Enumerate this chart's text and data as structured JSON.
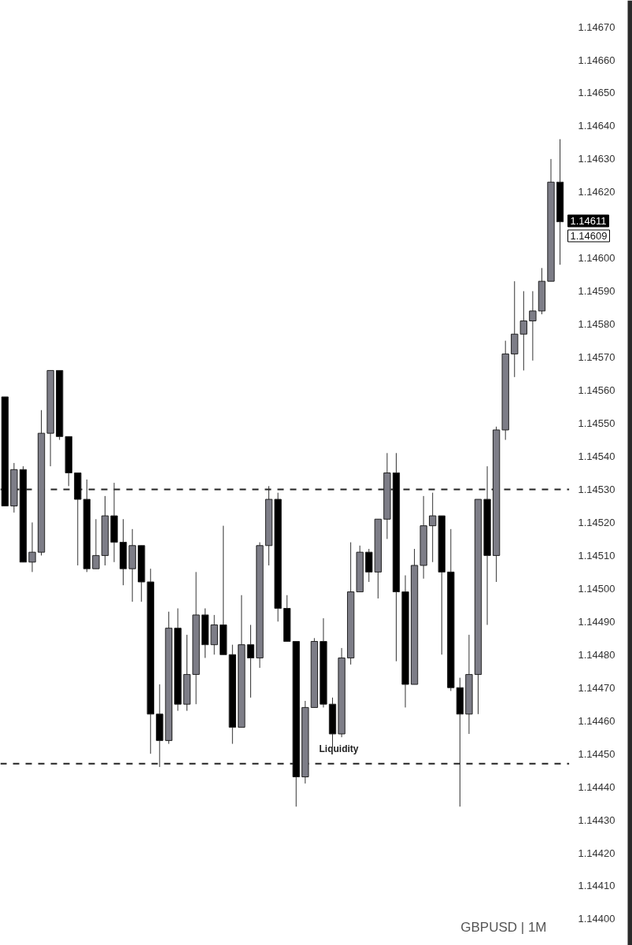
{
  "chart_data": {
    "type": "candlestick",
    "categories": [
      null,
      null,
      null,
      null,
      null,
      null,
      null,
      null,
      null,
      null,
      null,
      null,
      null,
      null,
      null,
      null,
      null,
      null,
      null,
      null,
      null,
      null,
      null,
      null,
      null,
      null,
      null,
      null,
      null,
      null,
      null,
      null,
      null,
      null,
      null,
      null,
      null,
      null,
      null,
      null,
      null,
      null,
      null,
      null,
      null,
      null,
      null,
      null,
      null,
      null,
      null,
      null,
      null,
      null,
      null,
      null,
      null,
      null,
      null,
      null,
      null,
      null
    ],
    "ohlc": [
      [
        1.14558,
        1.14558,
        1.14525,
        1.14525
      ],
      [
        1.14525,
        1.14538,
        1.14523,
        1.14536
      ],
      [
        1.14536,
        1.14537,
        1.14508,
        1.14508
      ],
      [
        1.14508,
        1.1452,
        1.14505,
        1.14511
      ],
      [
        1.14511,
        1.14554,
        1.1451,
        1.14547
      ],
      [
        1.14547,
        1.14566,
        1.14537,
        1.14566
      ],
      [
        1.14566,
        1.14566,
        1.14545,
        1.14546
      ],
      [
        1.14546,
        1.14546,
        1.14531,
        1.14535
      ],
      [
        1.14535,
        1.14535,
        1.14507,
        1.14527
      ],
      [
        1.14527,
        1.14533,
        1.14505,
        1.14506
      ],
      [
        1.14506,
        1.14521,
        1.14506,
        1.1451
      ],
      [
        1.1451,
        1.14528,
        1.14507,
        1.14522
      ],
      [
        1.14522,
        1.14532,
        1.14508,
        1.14514
      ],
      [
        1.14514,
        1.14521,
        1.14501,
        1.14506
      ],
      [
        1.14506,
        1.14518,
        1.14496,
        1.14513
      ],
      [
        1.14513,
        1.14513,
        1.14496,
        1.14502
      ],
      [
        1.14502,
        1.14506,
        1.1445,
        1.14462
      ],
      [
        1.14462,
        1.14471,
        1.14446,
        1.14454
      ],
      [
        1.14454,
        1.14493,
        1.14453,
        1.14488
      ],
      [
        1.14488,
        1.14494,
        1.14463,
        1.14465
      ],
      [
        1.14465,
        1.14486,
        1.14463,
        1.14474
      ],
      [
        1.14474,
        1.14505,
        1.14465,
        1.14492
      ],
      [
        1.14492,
        1.14494,
        1.14479,
        1.14483
      ],
      [
        1.14483,
        1.14492,
        1.1448,
        1.14489
      ],
      [
        1.14489,
        1.14519,
        1.1448,
        1.1448
      ],
      [
        1.1448,
        1.14483,
        1.14453,
        1.14458
      ],
      [
        1.14458,
        1.14498,
        1.14458,
        1.14483
      ],
      [
        1.14483,
        1.14489,
        1.14467,
        1.14479
      ],
      [
        1.14479,
        1.14514,
        1.14476,
        1.14513
      ],
      [
        1.14513,
        1.14531,
        1.14507,
        1.14527
      ],
      [
        1.14527,
        1.14529,
        1.1449,
        1.14494
      ],
      [
        1.14494,
        1.14498,
        1.14484,
        1.14484
      ],
      [
        1.14484,
        1.14484,
        1.14434,
        1.14443
      ],
      [
        1.14443,
        1.14466,
        1.14441,
        1.14464
      ],
      [
        1.14464,
        1.14485,
        1.14464,
        1.14484
      ],
      [
        1.14484,
        1.14491,
        1.14464,
        1.14465
      ],
      [
        1.14465,
        1.14467,
        1.14452,
        1.14456
      ],
      [
        1.14456,
        1.14482,
        1.14455,
        1.14479
      ],
      [
        1.14479,
        1.14514,
        1.14477,
        1.14499
      ],
      [
        1.14499,
        1.14513,
        1.14499,
        1.14511
      ],
      [
        1.14511,
        1.14512,
        1.14502,
        1.14505
      ],
      [
        1.14505,
        1.14521,
        1.14497,
        1.14521
      ],
      [
        1.14521,
        1.14541,
        1.14515,
        1.14535
      ],
      [
        1.14535,
        1.14541,
        1.14478,
        1.14499
      ],
      [
        1.14499,
        1.14504,
        1.14464,
        1.14471
      ],
      [
        1.14471,
        1.14512,
        1.14471,
        1.14507
      ],
      [
        1.14507,
        1.14528,
        1.14503,
        1.14519
      ],
      [
        1.14519,
        1.14529,
        1.14508,
        1.14522
      ],
      [
        1.14522,
        1.14522,
        1.1448,
        1.14505
      ],
      [
        1.14505,
        1.14518,
        1.14469,
        1.1447
      ],
      [
        1.1447,
        1.14473,
        1.14434,
        1.14462
      ],
      [
        1.14462,
        1.14486,
        1.14456,
        1.14474
      ],
      [
        1.14474,
        1.14527,
        1.14462,
        1.14527
      ],
      [
        1.14527,
        1.14537,
        1.14489,
        1.1451
      ],
      [
        1.1451,
        1.14549,
        1.14502,
        1.14548
      ],
      [
        1.14548,
        1.14575,
        1.14545,
        1.14571
      ],
      [
        1.14571,
        1.14593,
        1.14564,
        1.14577
      ],
      [
        1.14577,
        1.1459,
        1.14566,
        1.14581
      ],
      [
        1.14581,
        1.1459,
        1.14569,
        1.14584
      ],
      [
        1.14584,
        1.14597,
        1.14583,
        1.14593
      ],
      [
        1.14593,
        1.1463,
        1.14593,
        1.14623
      ],
      [
        1.14623,
        1.14636,
        1.14598,
        1.14611
      ]
    ],
    "colors": [
      "#000000",
      "#7d7d87",
      "#000000",
      "#7d7d87",
      "#7d7d87",
      "#7d7d87",
      "#000000",
      "#000000",
      "#000000",
      "#000000",
      "#7d7d87",
      "#7d7d87",
      "#000000",
      "#000000",
      "#7d7d87",
      "#000000",
      "#000000",
      "#000000",
      "#7d7d87",
      "#000000",
      "#7d7d87",
      "#7d7d87",
      "#000000",
      "#7d7d87",
      "#000000",
      "#000000",
      "#7d7d87",
      "#000000",
      "#7d7d87",
      "#7d7d87",
      "#000000",
      "#000000",
      "#000000",
      "#7d7d87",
      "#7d7d87",
      "#000000",
      "#000000",
      "#7d7d87",
      "#7d7d87",
      "#7d7d87",
      "#000000",
      "#7d7d87",
      "#7d7d87",
      "#000000",
      "#000000",
      "#7d7d87",
      "#7d7d87",
      "#7d7d87",
      "#000000",
      "#000000",
      "#000000",
      "#7d7d87",
      "#7d7d87",
      "#000000",
      "#7d7d87",
      "#7d7d87",
      "#7d7d87",
      "#7d7d87",
      "#7d7d87",
      "#7d7d87",
      "#7d7d87",
      "#000000"
    ],
    "ylim": [
      1.14392,
      1.14678
    ],
    "yticks": [
      {
        "value": 1.144,
        "label": "1.14400"
      },
      {
        "value": 1.1441,
        "label": "1.14410"
      },
      {
        "value": 1.1442,
        "label": "1.14420"
      },
      {
        "value": 1.1443,
        "label": "1.14430"
      },
      {
        "value": 1.1444,
        "label": "1.14440"
      },
      {
        "value": 1.1445,
        "label": "1.14450"
      },
      {
        "value": 1.1446,
        "label": "1.14460"
      },
      {
        "value": 1.1447,
        "label": "1.14470"
      },
      {
        "value": 1.1448,
        "label": "1.14480"
      },
      {
        "value": 1.1449,
        "label": "1.14490"
      },
      {
        "value": 1.145,
        "label": "1.14500"
      },
      {
        "value": 1.1451,
        "label": "1.14510"
      },
      {
        "value": 1.1452,
        "label": "1.14520"
      },
      {
        "value": 1.1453,
        "label": "1.14530"
      },
      {
        "value": 1.1454,
        "label": "1.14540"
      },
      {
        "value": 1.1455,
        "label": "1.14550"
      },
      {
        "value": 1.1456,
        "label": "1.14560"
      },
      {
        "value": 1.1457,
        "label": "1.14570"
      },
      {
        "value": 1.1458,
        "label": "1.14580"
      },
      {
        "value": 1.1459,
        "label": "1.14590"
      },
      {
        "value": 1.146,
        "label": "1.14600"
      },
      {
        "value": 1.1462,
        "label": "1.14620"
      },
      {
        "value": 1.1463,
        "label": "1.14630"
      },
      {
        "value": 1.1464,
        "label": "1.14640"
      },
      {
        "value": 1.1465,
        "label": "1.14650"
      },
      {
        "value": 1.1466,
        "label": "1.14660"
      },
      {
        "value": 1.1467,
        "label": "1.14670"
      }
    ],
    "grid": false,
    "ref_lines": [
      {
        "axis": "y",
        "value": 1.1453,
        "line_style": "dashed"
      },
      {
        "axis": "y",
        "value": 1.14447,
        "line_style": "dashed"
      }
    ],
    "annotations": [
      "Liquidity",
      "GBPUSD | 1M",
      "1.14611",
      "1.14609"
    ]
  }
}
